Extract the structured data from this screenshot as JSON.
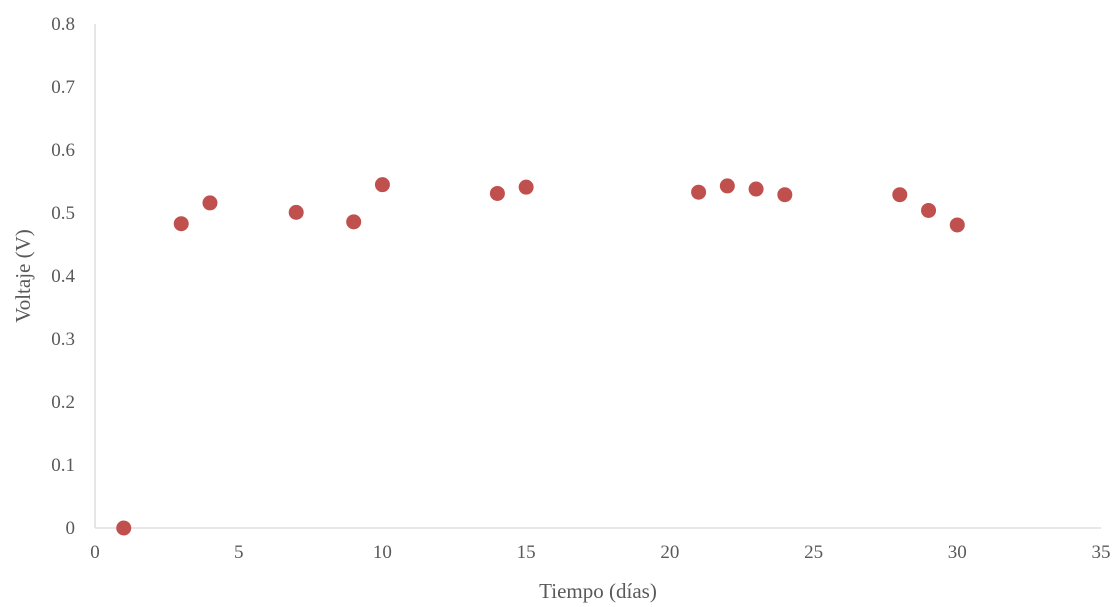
{
  "chart_data": {
    "type": "scatter",
    "title": "",
    "xlabel": "Tiempo (días)",
    "ylabel": "Voltaje (V)",
    "xlim": [
      0,
      35
    ],
    "ylim": [
      0,
      0.8
    ],
    "x_ticks": [
      "0",
      "5",
      "10",
      "15",
      "20",
      "25",
      "30",
      "35"
    ],
    "y_ticks": [
      "0",
      "0.1",
      "0.2",
      "0.3",
      "0.4",
      "0.5",
      "0.6",
      "0.7",
      "0.8"
    ],
    "grid": false,
    "legend": "none",
    "marker_color": "#c0504d",
    "series": [
      {
        "x": [
          1,
          3,
          4,
          7,
          9,
          10,
          14,
          15,
          21,
          22,
          23,
          24,
          28,
          29,
          30
        ],
        "y": [
          0.0,
          0.483,
          0.516,
          0.501,
          0.486,
          0.545,
          0.531,
          0.541,
          0.533,
          0.543,
          0.538,
          0.529,
          0.529,
          0.504,
          0.481
        ]
      }
    ]
  }
}
